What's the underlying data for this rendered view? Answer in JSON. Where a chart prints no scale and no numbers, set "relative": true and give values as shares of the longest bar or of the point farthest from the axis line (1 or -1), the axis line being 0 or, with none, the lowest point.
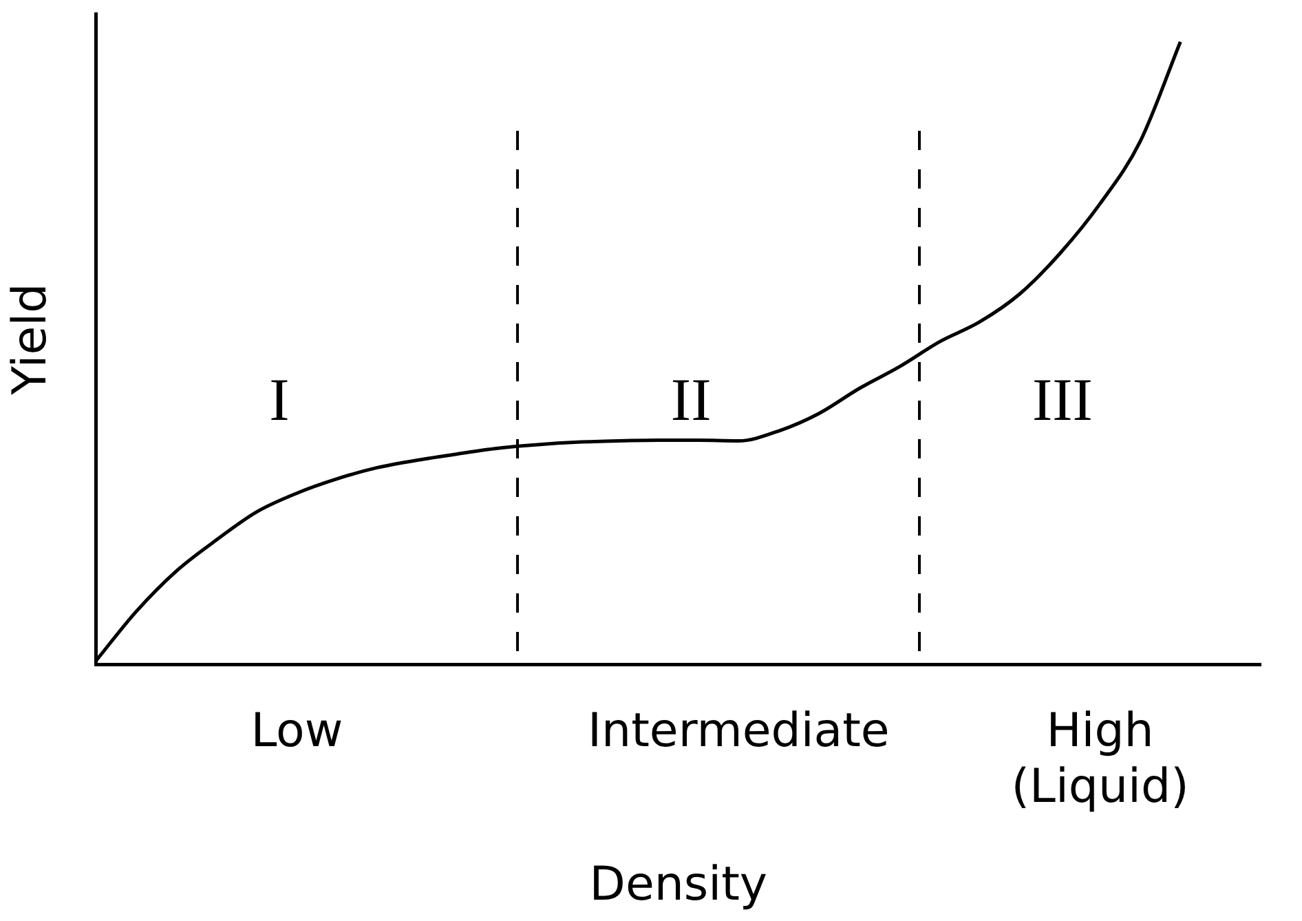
{
  "chart_data": {
    "type": "line",
    "relative": true,
    "xlabel": "Density",
    "ylabel": "Yield",
    "categories": [
      null,
      null,
      null,
      null,
      null,
      "Low",
      null,
      null,
      null,
      null,
      null,
      null,
      null,
      null,
      null,
      null,
      "Intermediate",
      null,
      null,
      null,
      null,
      null,
      null,
      null,
      null,
      "High (Liquid)",
      null,
      null,
      null,
      null
    ],
    "series": [
      {
        "color": "#000000",
        "values": [
          0.006,
          0.085,
          0.15,
          0.2,
          0.245,
          0.275,
          0.298,
          0.316,
          0.328,
          0.338,
          0.347,
          0.353,
          0.357,
          0.359,
          0.36,
          0.36,
          0.359,
          0.375,
          0.403,
          0.443,
          0.478,
          0.518,
          0.55,
          0.595,
          0.66,
          0.74,
          0.84,
          1,
          null,
          null
        ]
      }
    ],
    "annotations": [
      "I",
      "II",
      "III"
    ],
    "marker": "none",
    "legend": false,
    "grid": false
  }
}
